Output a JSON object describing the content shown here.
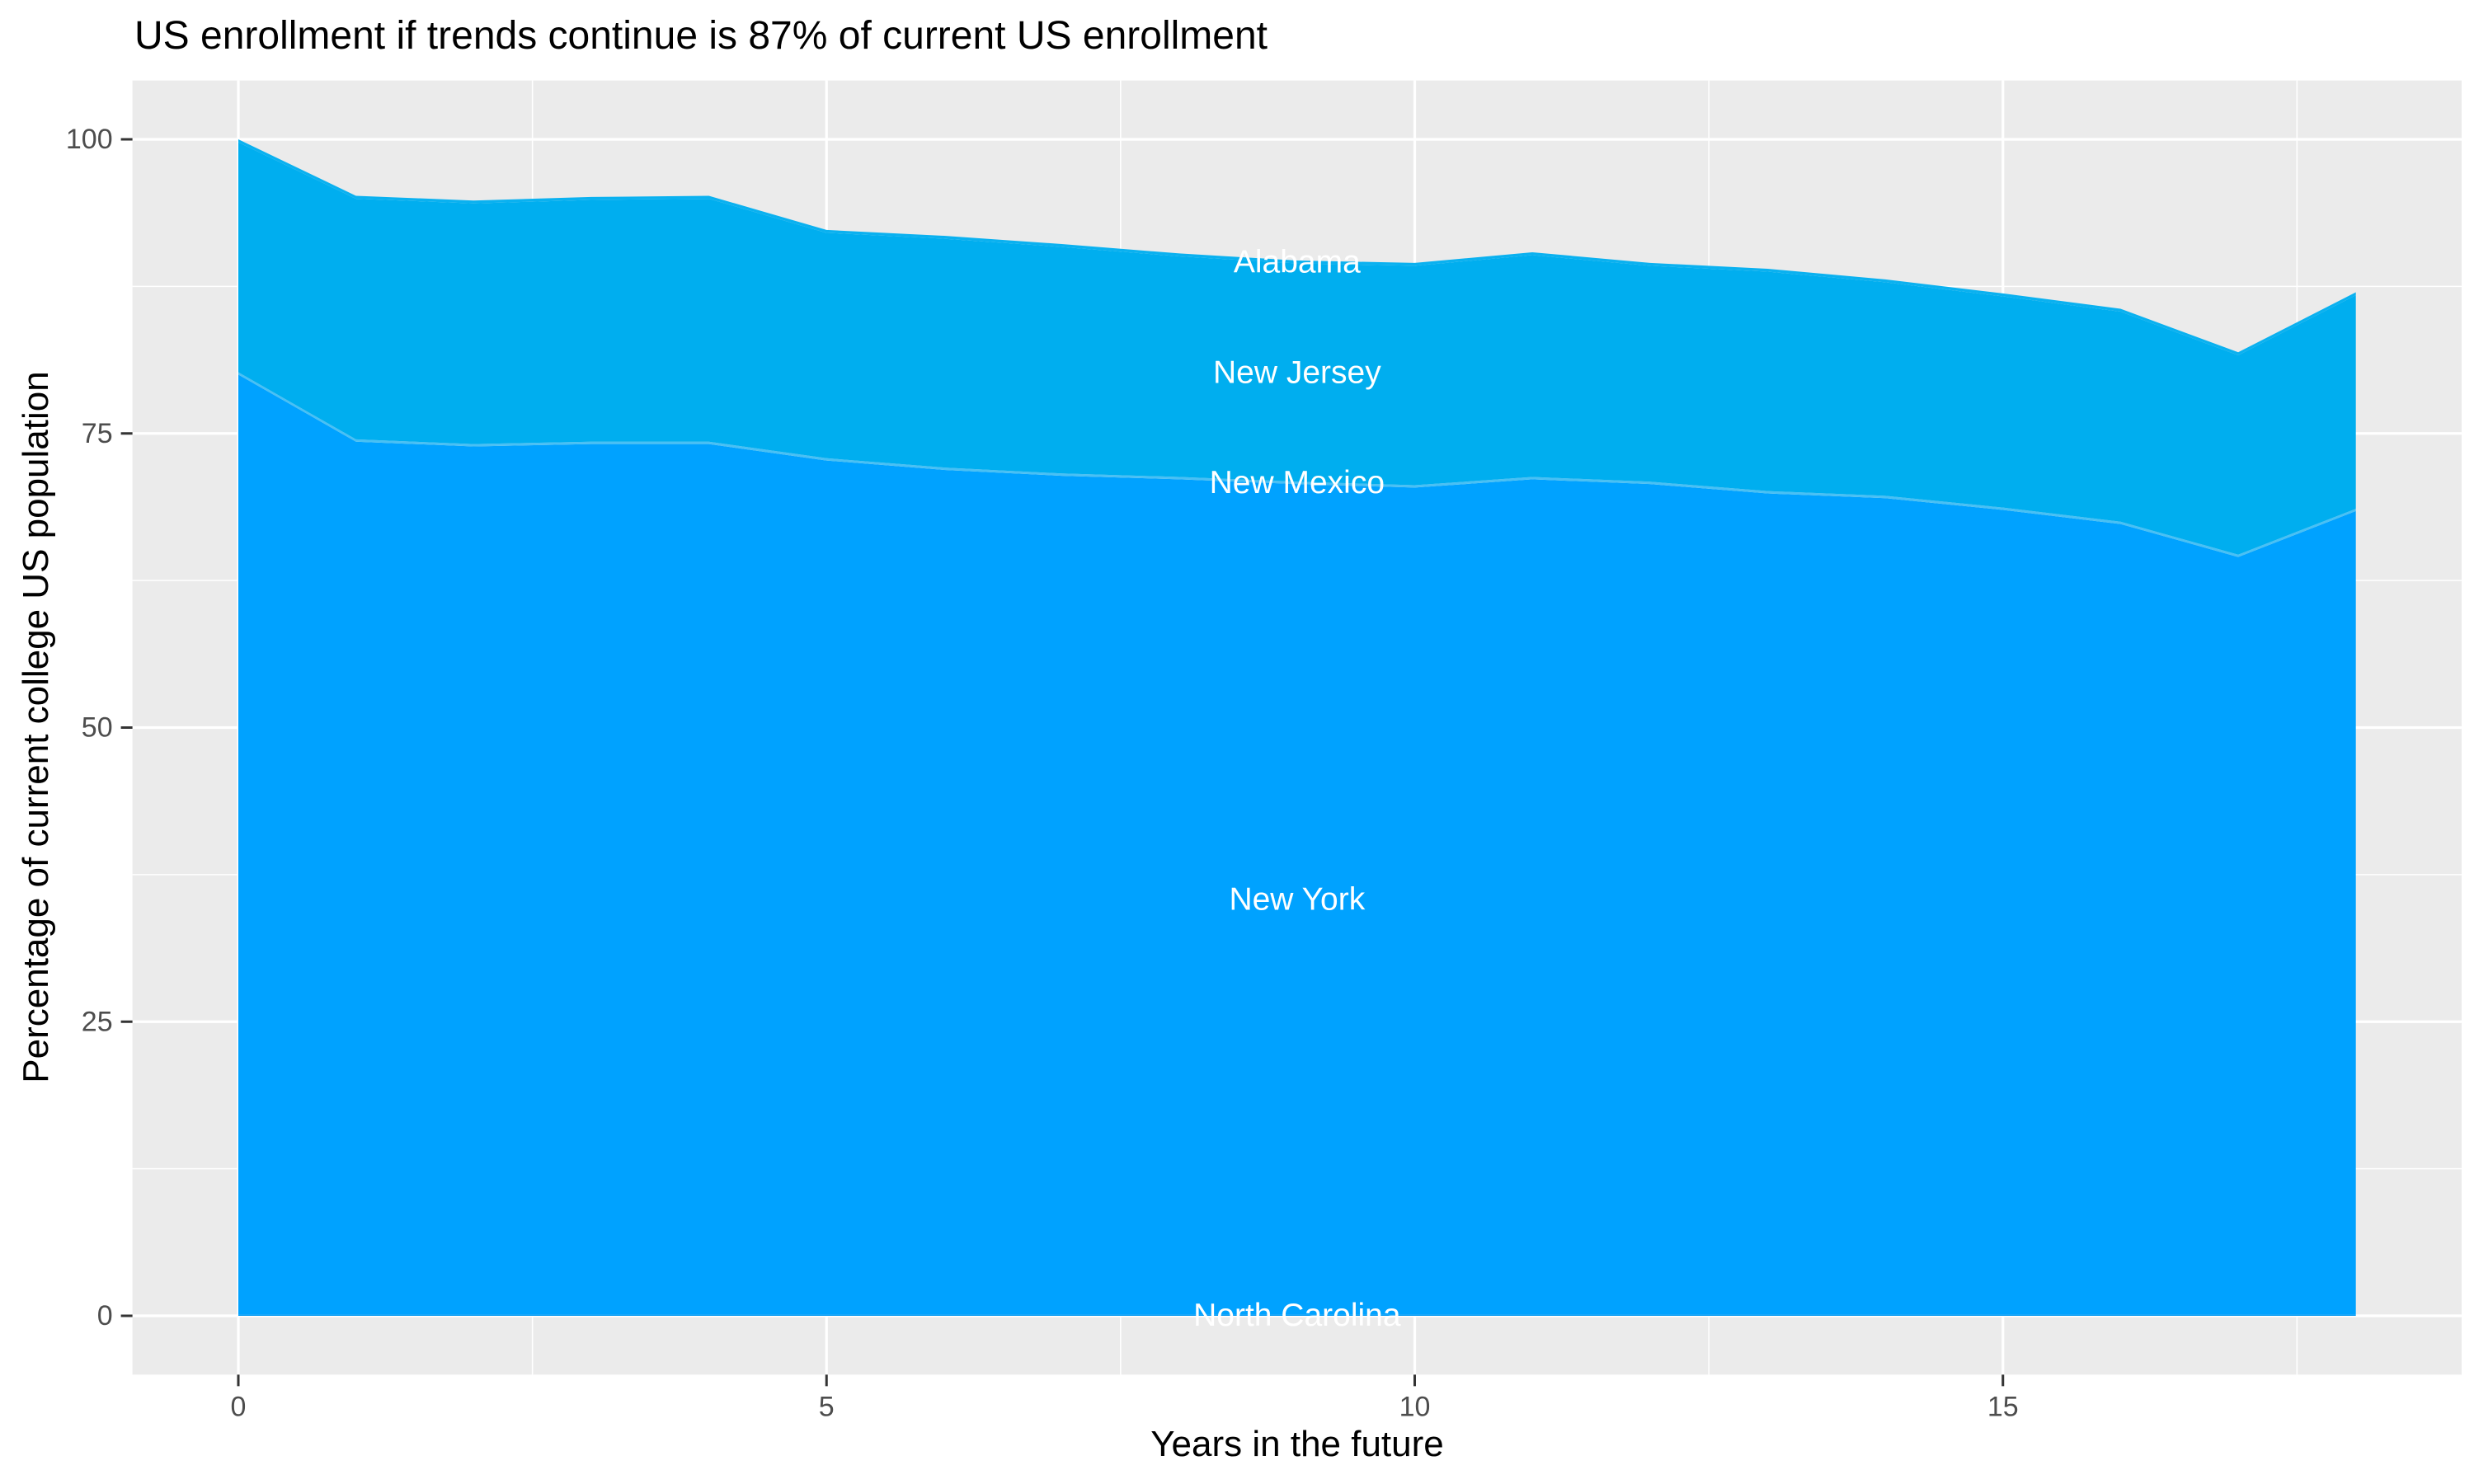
{
  "style": {
    "page_bg": "#FFFFFF",
    "panel_bg": "#EBEBEB",
    "grid_color": "#FFFFFF",
    "tick_text_color": "#4D4D4D",
    "tick_mark_color": "#333333",
    "title_color": "#000000",
    "area_label_color": "#FFFFFF"
  },
  "chart_data": {
    "type": "area",
    "stacked": true,
    "title": "US enrollment if trends continue is 87% of current US enrollment",
    "xlabel": "Years in the future",
    "ylabel": "Percentage of current college US population",
    "x": [
      0,
      1,
      2,
      3,
      4,
      5,
      6,
      7,
      8,
      9,
      10,
      11,
      12,
      13,
      14,
      15,
      16,
      17,
      18
    ],
    "xlim": [
      0,
      18
    ],
    "ylim": [
      0,
      100
    ],
    "x_major_ticks": [
      0,
      5,
      10,
      15
    ],
    "x_minor_ticks": [
      2.5,
      7.5,
      12.5,
      17.5
    ],
    "y_major_ticks": [
      0,
      25,
      50,
      75,
      100
    ],
    "y_minor_ticks": [
      12.5,
      37.5,
      62.5,
      87.5
    ],
    "x_tick_labels": [
      "0",
      "5",
      "10",
      "15"
    ],
    "y_tick_labels": [
      "0",
      "25",
      "50",
      "75",
      "100"
    ],
    "legend": "none",
    "label_style": "direct state labels drawn in white at band midpoints near x=9",
    "total_at_end_pct": 87,
    "series": [
      {
        "name": "North Carolina",
        "color": "#0099F2",
        "label_x": 9,
        "values": [
          0.1,
          0.1,
          0.1,
          0.1,
          0.1,
          0.1,
          0.1,
          0.1,
          0.1,
          0.1,
          0.1,
          0.1,
          0.1,
          0.1,
          0.1,
          0.1,
          0.1,
          0.1,
          0.1
        ]
      },
      {
        "name": "New York",
        "color": "#00A2FF",
        "label_x": 9,
        "values": [
          79.9,
          74.2,
          73.8,
          74.0,
          74.0,
          72.6,
          71.8,
          71.3,
          71.0,
          70.6,
          70.3,
          71.0,
          70.6,
          69.8,
          69.4,
          68.4,
          67.2,
          64.4,
          68.3
        ]
      },
      {
        "name": "New Mexico",
        "color": "#49C0F4",
        "label_x": 9,
        "values": [
          0.2,
          0.2,
          0.2,
          0.2,
          0.2,
          0.2,
          0.2,
          0.2,
          0.2,
          0.2,
          0.2,
          0.2,
          0.2,
          0.2,
          0.2,
          0.2,
          0.2,
          0.2,
          0.2
        ]
      },
      {
        "name": "New Jersey",
        "color": "#00AEEF",
        "label_x": 9,
        "values": [
          19.55,
          20.45,
          20.45,
          20.55,
          20.65,
          19.15,
          19.45,
          19.25,
          18.75,
          18.55,
          18.65,
          18.85,
          18.35,
          18.65,
          18.15,
          17.95,
          17.85,
          16.95,
          18.15
        ]
      },
      {
        "name": "Alabama",
        "color": "#0AB1F0",
        "label_x": 9,
        "values": [
          0.25,
          0.25,
          0.25,
          0.25,
          0.25,
          0.25,
          0.25,
          0.25,
          0.25,
          0.25,
          0.25,
          0.25,
          0.25,
          0.25,
          0.25,
          0.25,
          0.25,
          0.25,
          0.25
        ]
      }
    ],
    "stacked_totals": [
      100.0,
      95.2,
      94.8,
      95.1,
      95.2,
      92.3,
      91.8,
      91.1,
      90.3,
      89.7,
      89.5,
      90.4,
      89.5,
      89.0,
      88.1,
      86.9,
      85.6,
      81.9,
      87.0
    ]
  }
}
